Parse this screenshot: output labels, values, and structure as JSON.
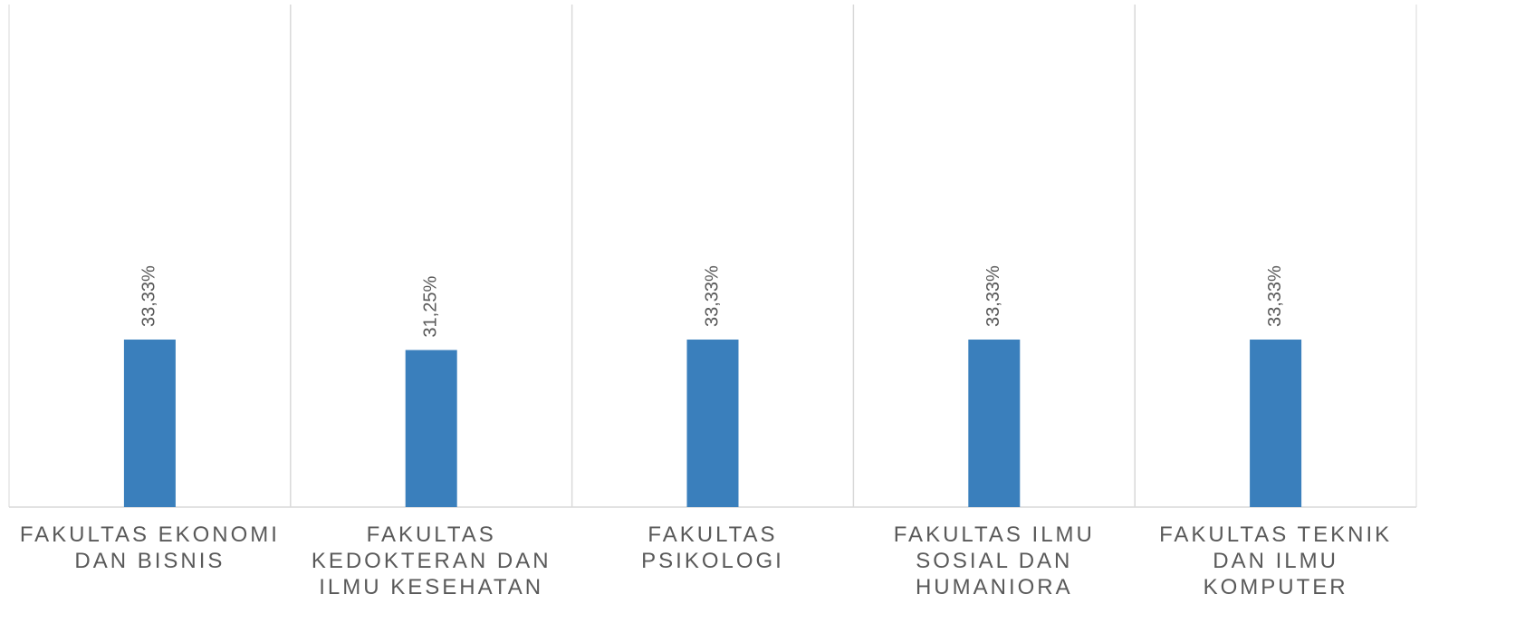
{
  "chart_data": {
    "type": "bar",
    "categories": [
      "FAKULTAS EKONOMI DAN BISNIS",
      "FAKULTAS KEDOKTERAN DAN ILMU KESEHATAN",
      "FAKULTAS PSIKOLOGI",
      "FAKULTAS ILMU SOSIAL DAN HUMANIORA",
      "FAKULTAS TEKNIK DAN ILMU KOMPUTER"
    ],
    "values": [
      33.33,
      31.25,
      33.33,
      33.33,
      33.33
    ],
    "value_labels": [
      "33,33%",
      "31,25%",
      "33,33%",
      "33,33%",
      "33,33%"
    ],
    "color": "#3a7fbc",
    "ylim": [
      0,
      100
    ]
  }
}
